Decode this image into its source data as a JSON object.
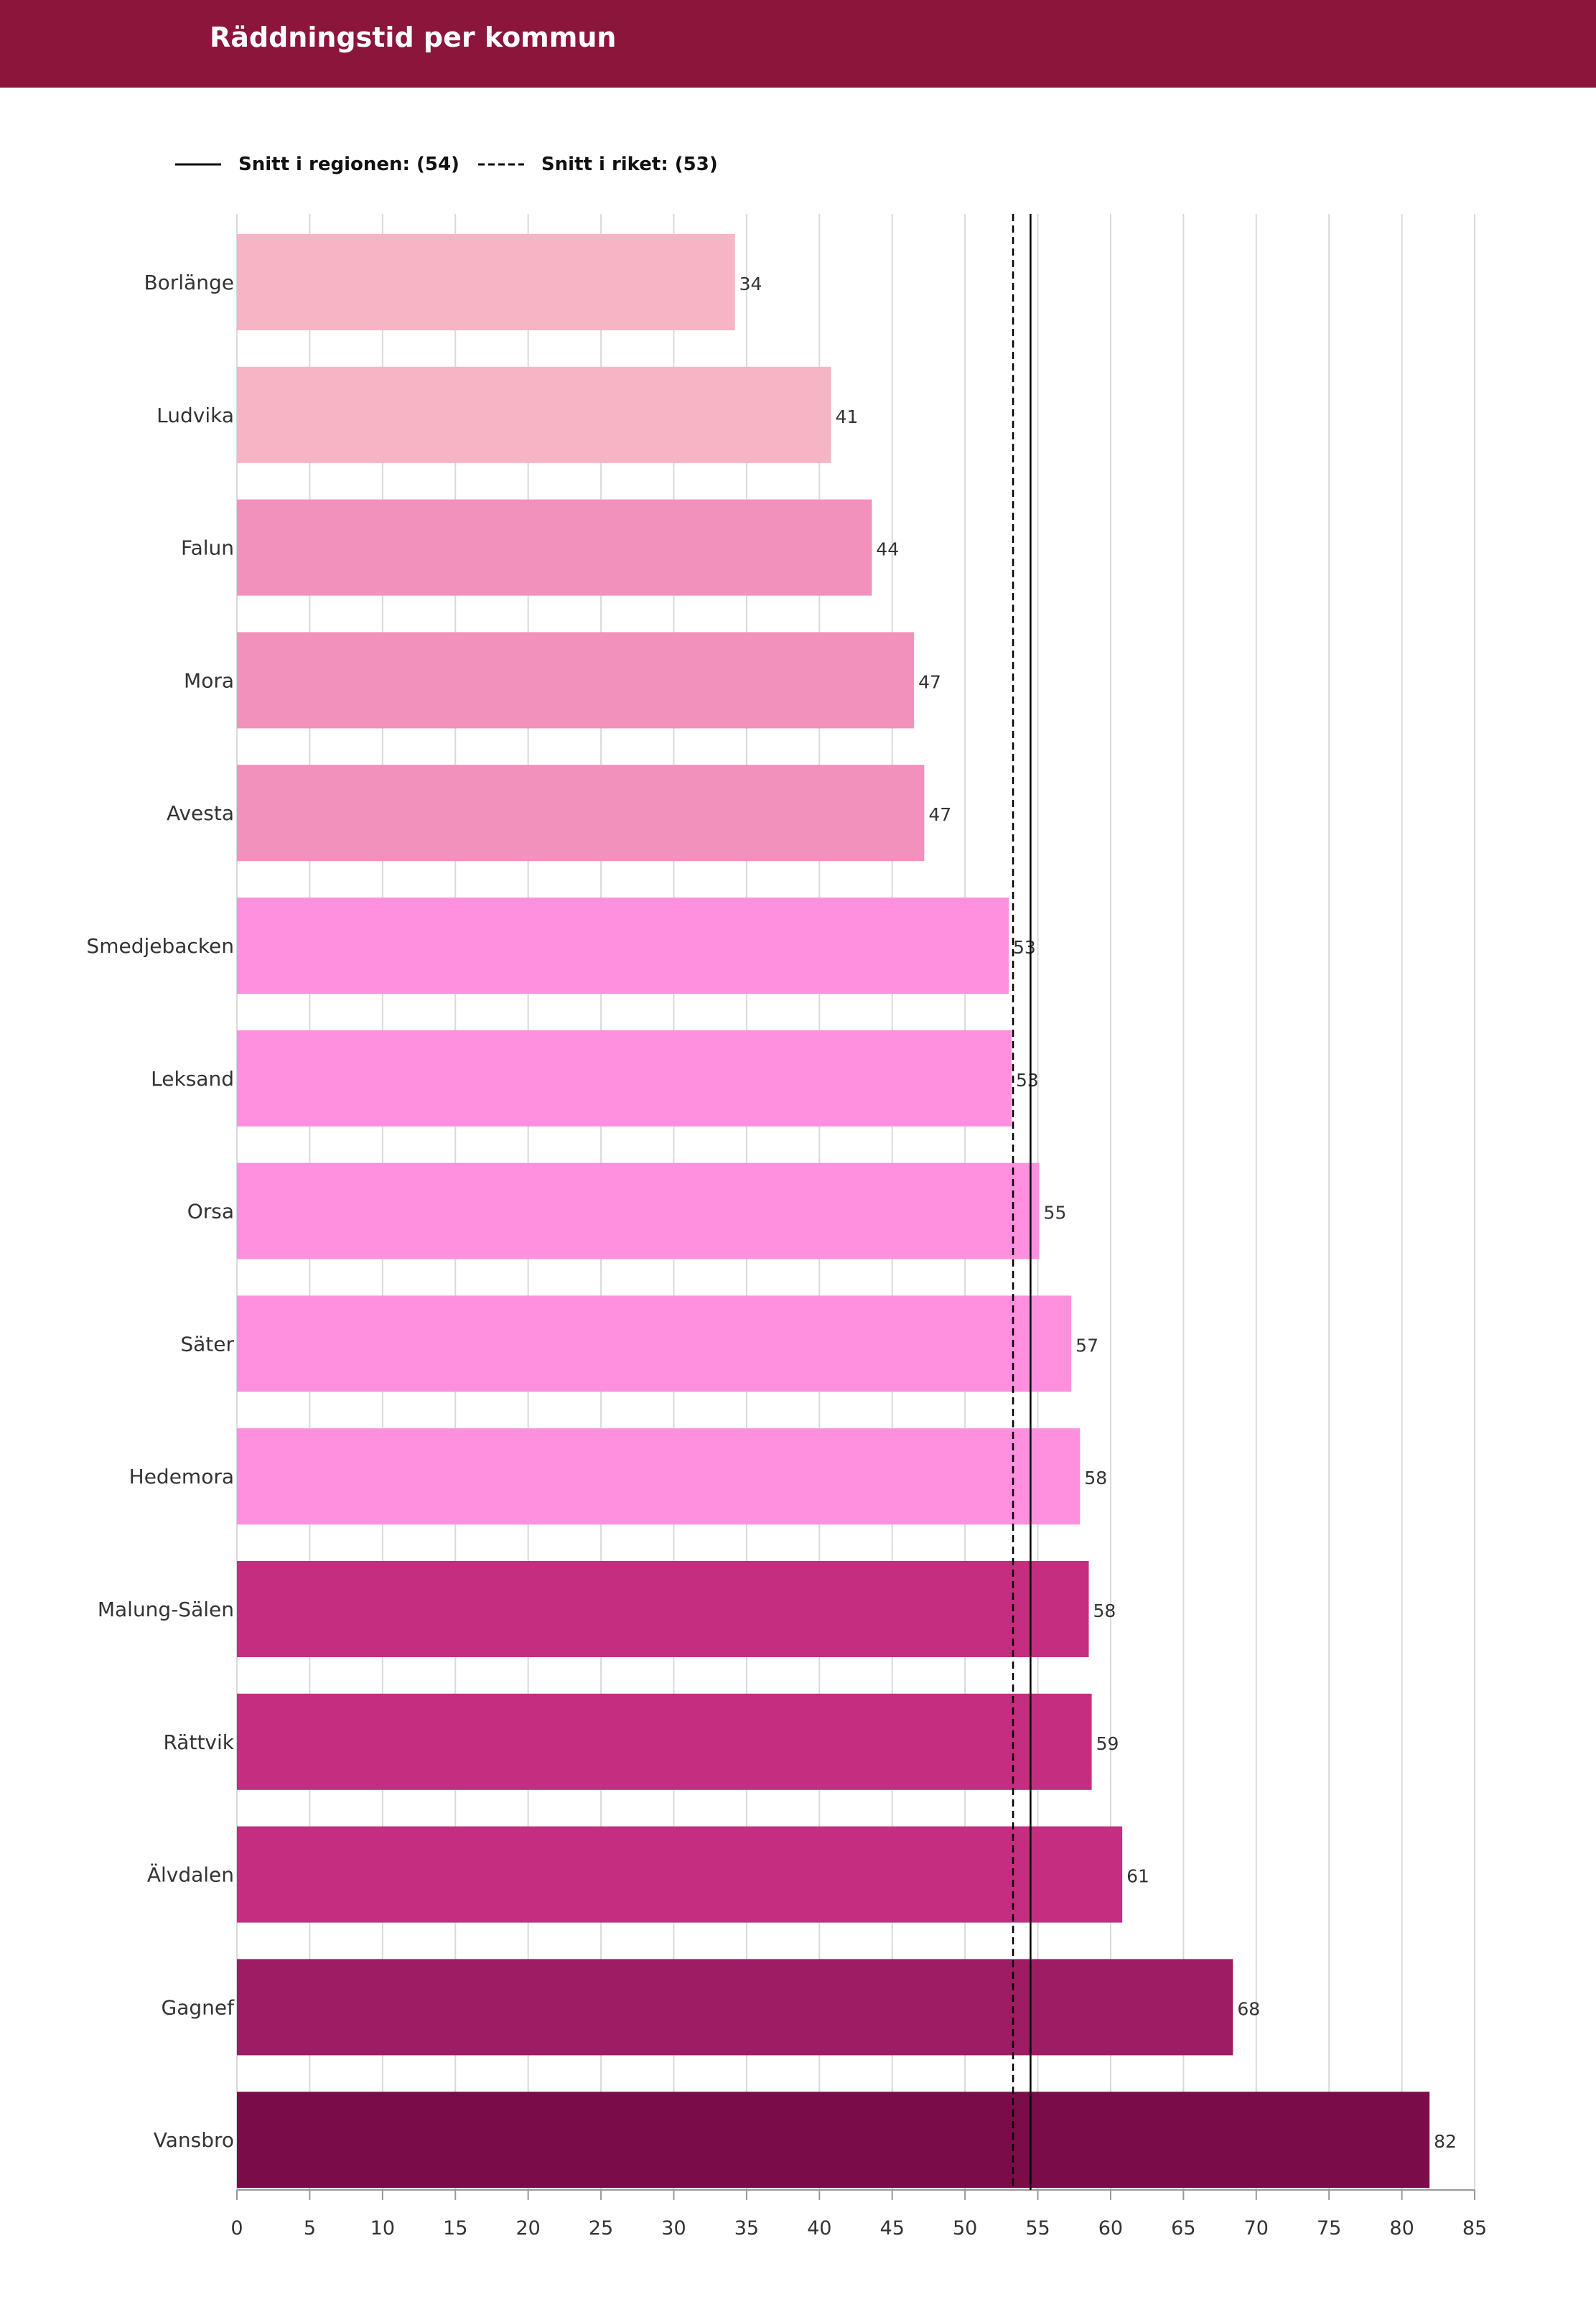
{
  "header": {
    "title": "Räddningstid per kommun"
  },
  "legend": {
    "region_label": "Snitt i regionen: (54)",
    "national_label": "Snitt i riket: (53)"
  },
  "colors": {
    "header_bg": "#8c153c",
    "reference_line": "#000000",
    "gridline": "#d9d9d9"
  },
  "chart_data": {
    "type": "bar",
    "orientation": "horizontal",
    "title": "Räddningstid per kommun",
    "xlabel": "",
    "ylabel": "",
    "xlim": [
      0,
      85
    ],
    "xticks": [
      0,
      5,
      10,
      15,
      20,
      25,
      30,
      35,
      40,
      45,
      50,
      55,
      60,
      65,
      70,
      75,
      80,
      85
    ],
    "grid": true,
    "legend_position": "top-left",
    "reference_lines": [
      {
        "name": "Snitt i regionen",
        "label": "(54)",
        "value": 54.5,
        "style": "solid"
      },
      {
        "name": "Snitt i riket",
        "label": "(53)",
        "value": 53.3,
        "style": "dashed"
      }
    ],
    "categories": [
      "Borlänge",
      "Ludvika",
      "Falun",
      "Mora",
      "Avesta",
      "Smedjebacken",
      "Leksand",
      "Orsa",
      "Säter",
      "Hedemora",
      "Malung-Sälen",
      "Rättvik",
      "Älvdalen",
      "Gagnef",
      "Vansbro"
    ],
    "values": [
      34.2,
      40.8,
      43.6,
      46.5,
      47.2,
      53.0,
      53.2,
      55.1,
      57.3,
      57.9,
      58.5,
      58.7,
      60.8,
      68.4,
      81.9
    ],
    "labels": [
      "34",
      "41",
      "44",
      "47",
      "47",
      "53",
      "53",
      "55",
      "57",
      "58",
      "58",
      "59",
      "61",
      "68",
      "82"
    ],
    "bar_colors": [
      "#f7b4c5",
      "#f7b4c5",
      "#f291bb",
      "#f291bb",
      "#f291bb",
      "#ff8fdf",
      "#ff8fdf",
      "#ff8fdf",
      "#ff8fdf",
      "#ff8fdf",
      "#c42d80",
      "#c42d80",
      "#c42d80",
      "#9e1c63",
      "#7a0c49"
    ]
  }
}
